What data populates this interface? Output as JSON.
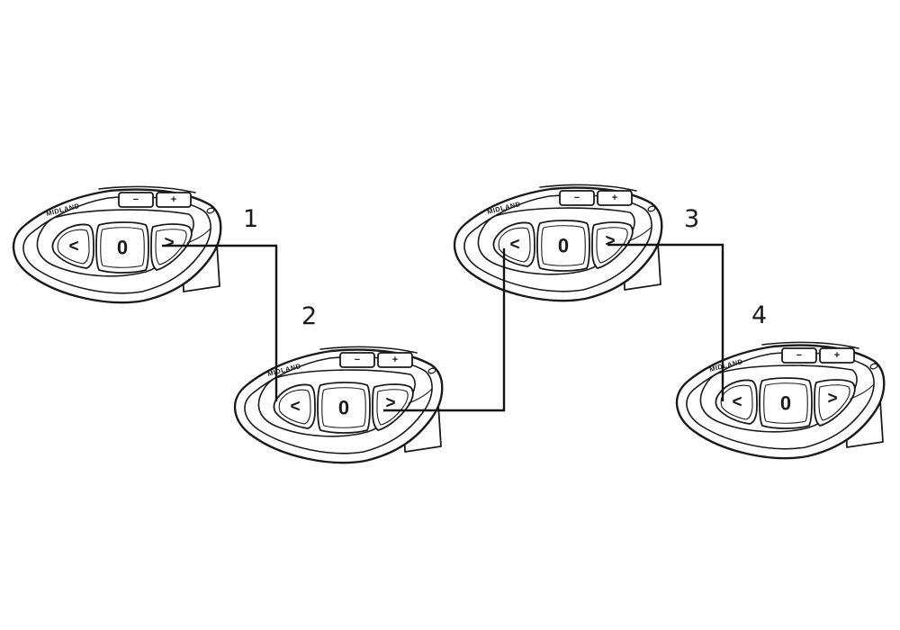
{
  "diagram": {
    "brand_text": "MIDLAND",
    "glyphs": {
      "volume_down": "−",
      "volume_up": "+",
      "prev": "<",
      "center": "0",
      "next": ">"
    },
    "units": [
      {
        "id": "unit-1",
        "label": "1"
      },
      {
        "id": "unit-2",
        "label": "2"
      },
      {
        "id": "unit-3",
        "label": "3"
      },
      {
        "id": "unit-4",
        "label": "4"
      }
    ],
    "connections": [
      {
        "from": "unit-1",
        "from_button": "next",
        "to": "unit-2",
        "to_button": "prev"
      },
      {
        "from": "unit-2",
        "from_button": "next",
        "to": "unit-3",
        "to_button": "prev"
      },
      {
        "from": "unit-3",
        "from_button": "next",
        "to": "unit-4",
        "to_button": "prev"
      }
    ],
    "colors": {
      "line": "#1a1a1a",
      "background": "#ffffff"
    }
  }
}
